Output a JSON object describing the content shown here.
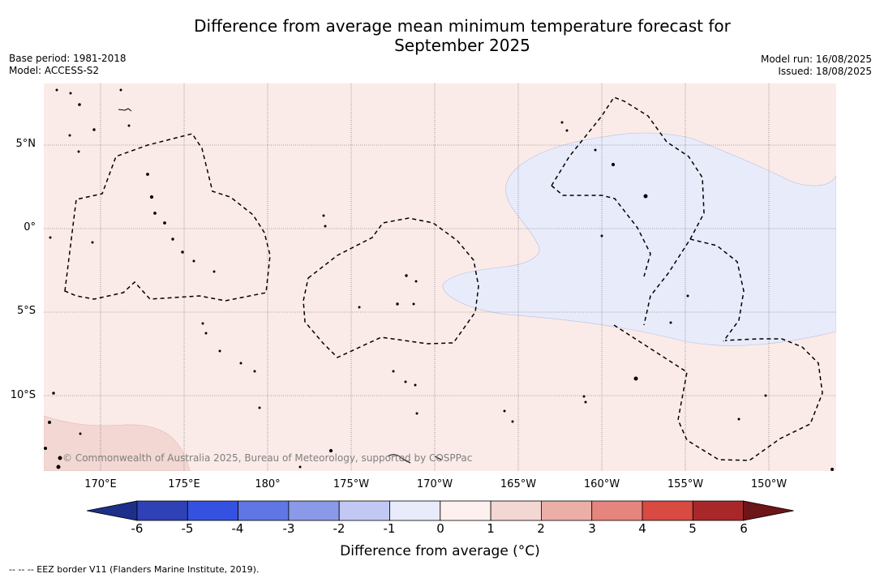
{
  "title": {
    "line1": "Difference from average mean minimum temperature forecast for",
    "line2": "September 2025"
  },
  "meta_left": {
    "base_period": "Base period: 1981-2018",
    "model": "Model: ACCESS-S2"
  },
  "meta_right": {
    "model_run": "Model run: 16/08/2025",
    "issued": "Issued: 18/08/2025"
  },
  "map": {
    "copyright": "© Commonwealth of Australia 2025, Bureau of Meteorology, supported by COSPPac",
    "lat_labels": [
      "5°N",
      "0°",
      "5°S",
      "10°S"
    ],
    "lon_labels": [
      "170°E",
      "175°E",
      "180°",
      "175°W",
      "170°W",
      "165°W",
      "160°W",
      "155°W",
      "150°W"
    ],
    "background_anomaly": "0 to 1 °C",
    "colors": {
      "warm_0_1": "#fbebe8",
      "warm_1_2": "#f3d7d3",
      "cool_m1_0": "#e8ebfa"
    }
  },
  "colorbar": {
    "label": "Difference from average (°C)",
    "ticks": [
      "-6",
      "-5",
      "-4",
      "-3",
      "-2",
      "-1",
      "0",
      "1",
      "2",
      "3",
      "4",
      "5",
      "6"
    ],
    "colors": [
      "#1e2f8a",
      "#2e41b5",
      "#3551e0",
      "#5f76e4",
      "#8a9ae8",
      "#c1c8f3",
      "#e8ebfa",
      "#fdf0ee",
      "#f3d7d3",
      "#ebafa8",
      "#e5857d",
      "#d84a42",
      "#a8282a",
      "#6d1519"
    ]
  },
  "legend_note": "--  --  -- EEZ border V11 (Flanders Marine Institute, 2019)."
}
